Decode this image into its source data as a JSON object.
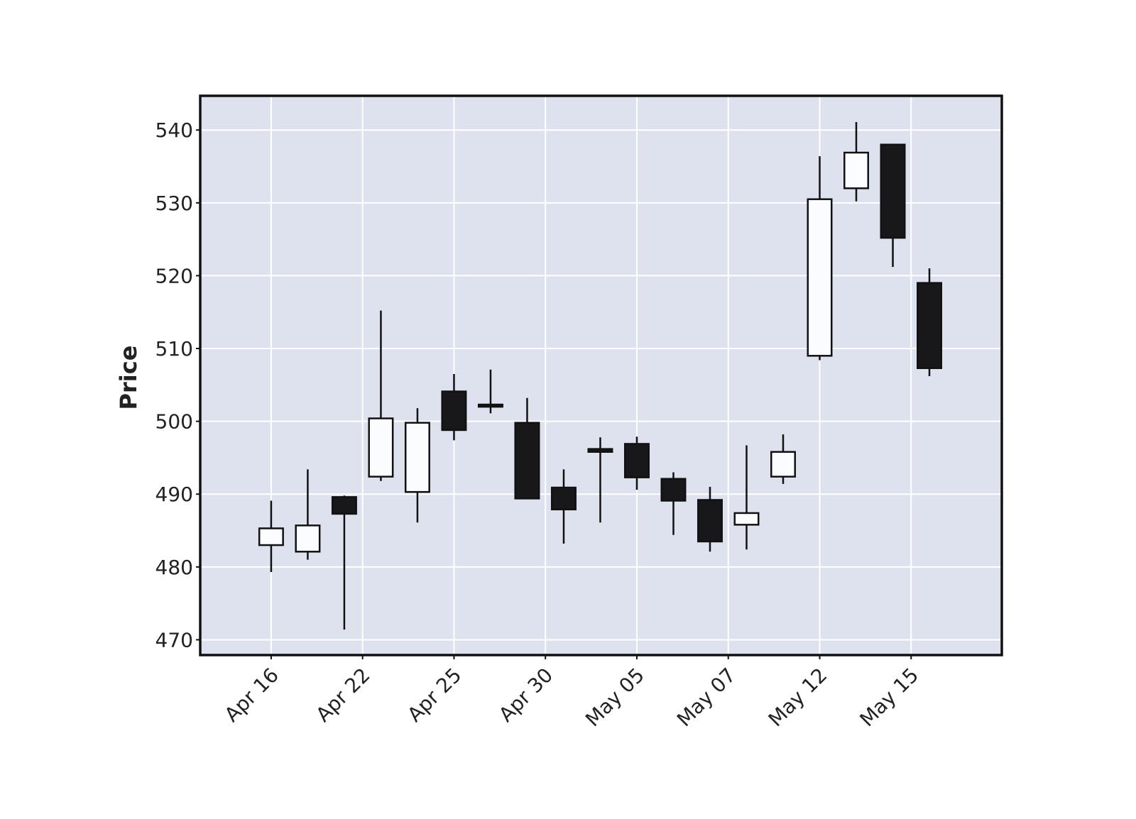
{
  "chart_data": {
    "type": "candlestick",
    "ylabel": "Price",
    "x": [
      0,
      1,
      2,
      3,
      4,
      5,
      6,
      7,
      8,
      9,
      10,
      11,
      12,
      13,
      14,
      15,
      16,
      17,
      18
    ],
    "open": [
      483.0,
      482.1,
      489.6,
      492.4,
      490.3,
      504.1,
      502.3,
      499.8,
      490.9,
      496.2,
      496.9,
      492.1,
      489.2,
      485.8,
      492.4,
      509.0,
      532.0,
      538.0,
      519.0
    ],
    "high": [
      489.1,
      493.4,
      489.8,
      515.2,
      501.8,
      506.5,
      507.1,
      503.2,
      493.4,
      497.8,
      497.9,
      493.0,
      491.0,
      496.7,
      498.2,
      536.4,
      541.1,
      538.0,
      521.0
    ],
    "low": [
      479.3,
      481.0,
      471.4,
      491.8,
      486.1,
      497.4,
      501.1,
      489.3,
      483.2,
      486.1,
      490.6,
      484.4,
      482.1,
      482.4,
      491.4,
      508.4,
      530.2,
      521.2,
      506.2
    ],
    "close": [
      485.3,
      485.7,
      487.3,
      500.4,
      499.8,
      498.8,
      502.0,
      489.4,
      487.9,
      495.8,
      492.3,
      489.1,
      483.5,
      487.4,
      495.8,
      530.5,
      536.9,
      525.2,
      507.3
    ],
    "up_color": "#fafcff",
    "down_color": "#18181a",
    "xlim": [
      -1.94,
      19.98
    ],
    "xticks": [
      {
        "value": 0,
        "label": "Apr 16"
      },
      {
        "value": 2.5,
        "label": "Apr 22"
      },
      {
        "value": 5,
        "label": "Apr 25"
      },
      {
        "value": 7.5,
        "label": "Apr 30"
      },
      {
        "value": 10,
        "label": "May 05"
      },
      {
        "value": 12.5,
        "label": "May 07"
      },
      {
        "value": 15,
        "label": "May 12"
      },
      {
        "value": 17.5,
        "label": "May 15"
      }
    ],
    "ylim": [
      467.9,
      544.7
    ],
    "yticks": [
      470,
      480,
      490,
      500,
      510,
      520,
      530,
      540
    ],
    "grid": true
  }
}
